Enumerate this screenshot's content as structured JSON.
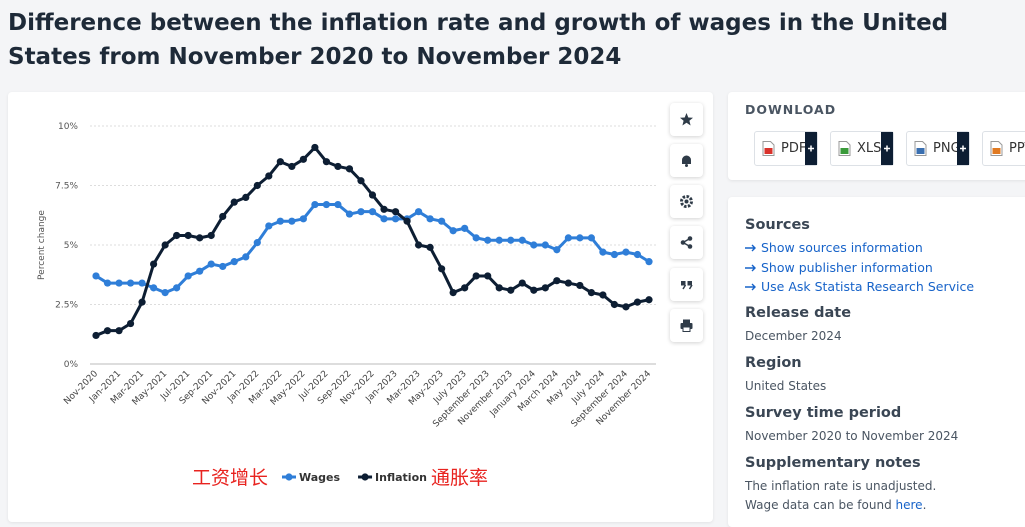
{
  "chart_data": {
    "type": "line",
    "title": "Difference between the inflation rate and growth of wages in the United States from November 2020 to November 2024",
    "ylabel": "Percent change",
    "categories": [
      "Nov-2020",
      null,
      "Jan-2021",
      null,
      "Mar-2021",
      null,
      "May-2021",
      null,
      "Jul-2021",
      null,
      "Sep-2021",
      null,
      "Nov-2021",
      null,
      "Jan-2022",
      null,
      "Mar-2022",
      null,
      "May-2022",
      null,
      "Jul-2022",
      null,
      "Sep-2022",
      null,
      "Nov-2022",
      null,
      "Jan-2023",
      null,
      "Mar-2023",
      null,
      "May-2023",
      null,
      "July 2023",
      null,
      "September 2023",
      null,
      "November 2023",
      null,
      "January 2024",
      null,
      "March 2024",
      null,
      "May 2024",
      null,
      "July 2024",
      null,
      "September 2024",
      null,
      "November 2024"
    ],
    "series": [
      {
        "name": "Wages",
        "color": "#2f7ed8",
        "values": [
          3.7,
          3.4,
          3.4,
          3.4,
          3.4,
          3.2,
          3.0,
          3.2,
          3.7,
          3.9,
          4.2,
          4.1,
          4.3,
          4.5,
          5.1,
          5.8,
          6.0,
          6.0,
          6.1,
          6.7,
          6.7,
          6.7,
          6.3,
          6.4,
          6.4,
          6.1,
          6.1,
          6.1,
          6.4,
          6.1,
          6.0,
          5.6,
          5.7,
          5.3,
          5.2,
          5.2,
          5.2,
          5.2,
          5.0,
          5.0,
          4.8,
          5.3,
          5.3,
          5.3,
          4.7,
          4.6,
          4.7,
          4.6,
          4.3
        ]
      },
      {
        "name": "Inflation",
        "color": "#0d1e33",
        "values": [
          1.2,
          1.4,
          1.4,
          1.7,
          2.6,
          4.2,
          5.0,
          5.4,
          5.4,
          5.3,
          5.4,
          6.2,
          6.8,
          7.0,
          7.5,
          7.9,
          8.5,
          8.3,
          8.6,
          9.1,
          8.5,
          8.3,
          8.2,
          7.7,
          7.1,
          6.5,
          6.4,
          6.0,
          5.0,
          4.9,
          4.0,
          3.0,
          3.2,
          3.7,
          3.7,
          3.2,
          3.1,
          3.4,
          3.1,
          3.2,
          3.5,
          3.4,
          3.3,
          3.0,
          2.9,
          2.5,
          2.4,
          2.6,
          2.7
        ]
      }
    ],
    "ylim": [
      0,
      10
    ],
    "yticks": [
      {
        "value": 0,
        "label": "0%"
      },
      {
        "value": 2.5,
        "label": "2.5%"
      },
      {
        "value": 5,
        "label": "5%"
      },
      {
        "value": 7.5,
        "label": "7.5%"
      },
      {
        "value": 10,
        "label": "10%"
      }
    ],
    "grid": true,
    "annotations": [
      "工资增长",
      "通胀率"
    ]
  },
  "download": {
    "heading": "DOWNLOAD",
    "formats": [
      "PDF",
      "XLS",
      "PNG",
      "PPT"
    ]
  },
  "details": {
    "sources": {
      "heading": "Sources",
      "links": [
        "Show sources information",
        "Show publisher information",
        "Use Ask Statista Research Service"
      ]
    },
    "release_date": {
      "heading": "Release date",
      "text": "December 2024"
    },
    "region": {
      "heading": "Region",
      "text": "United States"
    },
    "survey_period": {
      "heading": "Survey time period",
      "text": "November 2020 to November 2024"
    },
    "notes": {
      "heading": "Supplementary notes",
      "line1": "The inflation rate is unadjusted.",
      "line2": [
        "Wage data can be found ",
        "here",
        "."
      ]
    }
  }
}
